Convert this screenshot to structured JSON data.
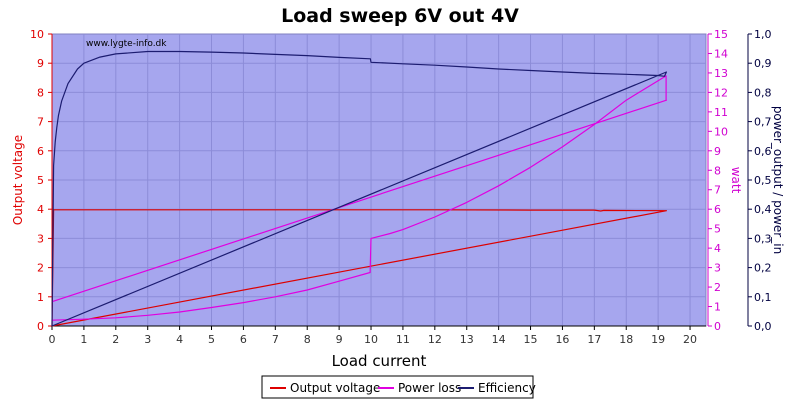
{
  "chart_data": {
    "type": "line",
    "title": "Load sweep 6V out 4V",
    "xlabel": "Load current",
    "watermark": "www.lygte-info.dk",
    "x_ticks": [
      "0",
      "1",
      "2",
      "3",
      "4",
      "5",
      "6",
      "7",
      "8",
      "9",
      "10",
      "11",
      "12",
      "13",
      "14",
      "15",
      "16",
      "17",
      "18",
      "19",
      "20"
    ],
    "xlim": [
      0,
      20.5
    ],
    "grid": true,
    "legend_position": "bottom-center",
    "axes": {
      "left": {
        "label": "Output voltage",
        "color": "#e00000",
        "min": 0,
        "max": 10,
        "ticks": [
          "0",
          "1",
          "2",
          "3",
          "4",
          "5",
          "6",
          "7",
          "8",
          "9",
          "10"
        ]
      },
      "right1": {
        "label": "watt",
        "color": "#d000d0",
        "min": 0,
        "max": 15,
        "ticks": [
          "0",
          "1",
          "2",
          "3",
          "4",
          "5",
          "6",
          "7",
          "8",
          "9",
          "10",
          "11",
          "12",
          "13",
          "14",
          "15"
        ]
      },
      "right2": {
        "label": "power_output / power_in",
        "color": "#000040",
        "min": 0,
        "max": 1,
        "ticks": [
          "0,0",
          "0,1",
          "0,2",
          "0,3",
          "0,4",
          "0,5",
          "0,6",
          "0,7",
          "0,8",
          "0,9",
          "1,0"
        ]
      }
    },
    "series": [
      {
        "name": "Output voltage",
        "axis": "left",
        "color": "#dd0000",
        "x": [
          0.0,
          0.05,
          2.0,
          5.0,
          8.0,
          10.0,
          12.0,
          15.0,
          17.0,
          17.2,
          17.3,
          19.26,
          19.26,
          0.0
        ],
        "y": [
          0.0,
          3.98,
          3.98,
          3.98,
          3.98,
          3.98,
          3.98,
          3.97,
          3.97,
          3.94,
          3.96,
          3.95,
          3.95,
          0.0
        ]
      },
      {
        "name": "Power loss",
        "axis": "right1",
        "color": "#e000e0",
        "x": [
          0.0,
          1.0,
          2.0,
          3.0,
          4.0,
          5.0,
          6.0,
          7.0,
          8.0,
          9.0,
          9.97,
          10.0,
          10.6,
          11.0,
          12.0,
          13.0,
          14.0,
          15.0,
          16.0,
          17.0,
          18.0,
          19.0,
          19.25,
          19.25,
          19.26,
          0.0
        ],
        "y": [
          0.3,
          0.35,
          0.42,
          0.55,
          0.72,
          0.95,
          1.2,
          1.5,
          1.85,
          2.3,
          2.75,
          4.5,
          4.75,
          4.95,
          5.6,
          6.35,
          7.2,
          8.15,
          9.2,
          10.35,
          11.6,
          12.6,
          12.85,
          11.6,
          11.6,
          1.25
        ]
      },
      {
        "name": "Efficiency",
        "axis": "right2",
        "color": "#1c1c70",
        "x": [
          0.0,
          0.05,
          0.1,
          0.15,
          0.2,
          0.3,
          0.5,
          0.8,
          1.0,
          1.5,
          2.0,
          3.0,
          4.0,
          5.0,
          6.0,
          7.0,
          8.0,
          9.0,
          9.98,
          10.0,
          11.0,
          12.0,
          13.0,
          14.0,
          15.0,
          16.0,
          17.0,
          18.0,
          19.0,
          19.2,
          19.26,
          0.0
        ],
        "y": [
          0.0,
          0.55,
          0.63,
          0.68,
          0.72,
          0.77,
          0.83,
          0.88,
          0.9,
          0.921,
          0.932,
          0.94,
          0.94,
          0.938,
          0.935,
          0.93,
          0.926,
          0.92,
          0.915,
          0.903,
          0.898,
          0.893,
          0.887,
          0.88,
          0.875,
          0.87,
          0.865,
          0.862,
          0.858,
          0.855,
          0.87,
          0.0
        ]
      }
    ]
  }
}
